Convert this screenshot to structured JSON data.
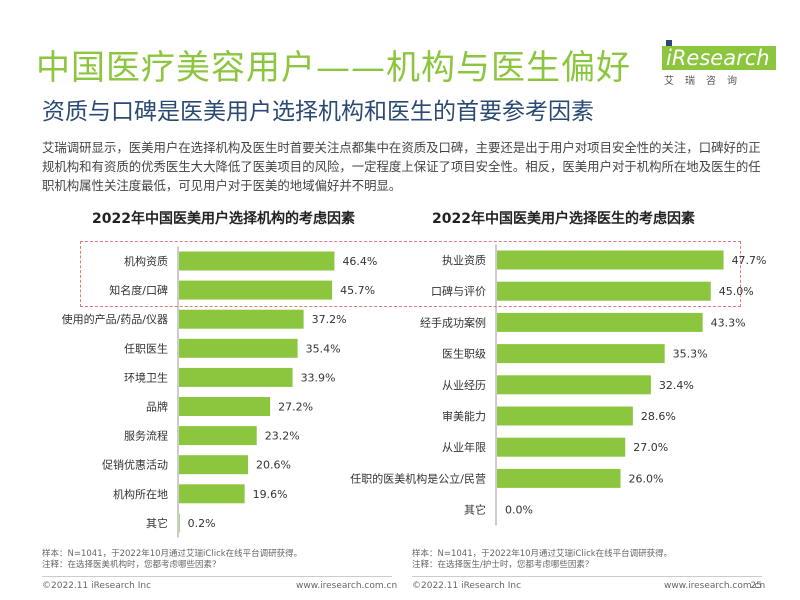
{
  "header": {
    "title": "中国医疗美容用户——机构与医生偏好",
    "subtitle": "资质与口碑是医美用户选择机构和医生的首要参考因素",
    "logo_text": "iResearch",
    "logo_cn": "艾瑞咨询",
    "brand_color": "#8cc63f"
  },
  "description": "艾瑞调研显示，医美用户在选择机构及医生时首要关注点都集中在资质及口碑，主要还是出于用户对项目安全性的关注，口碑好的正规机构和有资质的优秀医生大大降低了医美项目的风险，一定程度上保证了项目安全性。相反，医美用户对于机构所在地及医生的任职机构属性关注度最低，可见用户对于医美的地域偏好并不明显。",
  "chart_data": [
    {
      "type": "bar",
      "orientation": "horizontal",
      "title": "2022年中国医美用户选择机构的考虑因素",
      "categories": [
        "机构资质",
        "知名度/口碑",
        "使用的产品/药品/仪器",
        "任职医生",
        "环境卫生",
        "品牌",
        "服务流程",
        "促销优惠活动",
        "机构所在地",
        "其它"
      ],
      "values": [
        46.4,
        45.7,
        37.2,
        35.4,
        33.9,
        27.2,
        23.2,
        20.6,
        19.6,
        0.2
      ],
      "value_labels": [
        "46.4%",
        "45.7%",
        "37.2%",
        "35.4%",
        "33.9%",
        "27.2%",
        "23.2%",
        "20.6%",
        "19.6%",
        "0.2%"
      ],
      "unit": "%",
      "bar_color": "#8cc63f"
    },
    {
      "type": "bar",
      "orientation": "horizontal",
      "title": "2022年中国医美用户选择医生的考虑因素",
      "categories": [
        "执业资质",
        "口碑与评价",
        "经手成功案例",
        "医生职级",
        "从业经历",
        "审美能力",
        "从业年限",
        "任职的医美机构是公立/民营",
        "其它"
      ],
      "values": [
        47.7,
        45.0,
        43.3,
        35.3,
        32.4,
        28.6,
        27.0,
        26.0,
        0.0
      ],
      "value_labels": [
        "47.7%",
        "45.0%",
        "43.3%",
        "35.3%",
        "32.4%",
        "28.6%",
        "27.0%",
        "26.0%",
        "0.0%"
      ],
      "unit": "%",
      "bar_color": "#8cc63f"
    }
  ],
  "notes": {
    "left": [
      "样本：N=1041，于2022年10月通过艾瑞iClick在线平台调研获得。",
      "注释：在选择医美机构时，您都考虑哪些因素？"
    ],
    "right": [
      "样本：N=1041，于2022年10月通过艾瑞iClick在线平台调研获得。",
      "注释：在选择医生/护士时，您都考虑哪些因素？"
    ]
  },
  "footer": {
    "left_copyright": "©2022.11 iResearch Inc",
    "left_url": "www.iresearch.com.cn",
    "right_copyright": "©2022.11 iResearch Inc",
    "right_url": "www.iresearch.com.cn",
    "page_number": "25"
  }
}
